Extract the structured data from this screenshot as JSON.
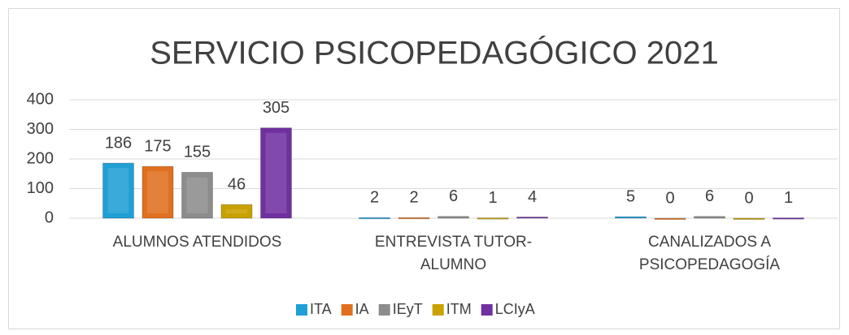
{
  "chart_data": {
    "type": "bar",
    "title": "SERVICIO PSICOPEDAGÓGICO 2021",
    "categories": [
      "ALUMNOS ATENDIDOS",
      "ENTREVISTA TUTOR- ALUMNO",
      "CANALIZADOS A PSICOPEDAGOGÍA"
    ],
    "series": [
      {
        "name": "ITA",
        "color": "#1f9fd6",
        "values": [
          186,
          2,
          5
        ]
      },
      {
        "name": "IA",
        "color": "#e0701f",
        "values": [
          175,
          2,
          0
        ]
      },
      {
        "name": "IEyT",
        "color": "#8c8c8c",
        "values": [
          155,
          6,
          6
        ]
      },
      {
        "name": "ITM",
        "color": "#c9a100",
        "values": [
          46,
          1,
          0
        ]
      },
      {
        "name": "LCIyA",
        "color": "#7030a0",
        "values": [
          305,
          4,
          1
        ]
      }
    ],
    "ylim": [
      0,
      400
    ],
    "yticks": [
      0,
      100,
      200,
      300,
      400
    ],
    "grid": true,
    "legend": "bottom"
  }
}
